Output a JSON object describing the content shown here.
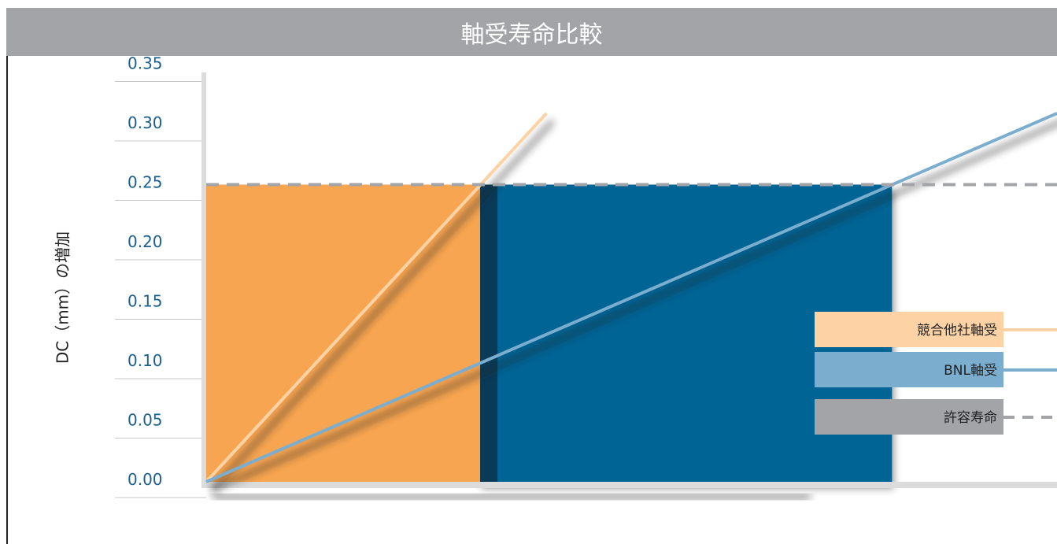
{
  "header": {
    "title": "軸受寿命比較"
  },
  "colors": {
    "competitor": "#f7a550",
    "competitor_line": "#fdd3a6",
    "bnl": "#006495",
    "bnl_line": "#7badcf",
    "allowable": "#a3a4a7",
    "tick_text": "#1b5f8d"
  },
  "chart_data": {
    "type": "line",
    "title": "軸受寿命比較",
    "ylabel": "DC（mm）の増加",
    "xlabel": "",
    "ylim": [
      0,
      0.35
    ],
    "y_ticks": [
      "0.35",
      "0.30",
      "0.25",
      "0.20",
      "0.15",
      "0.10",
      "0.05",
      "0.00"
    ],
    "x_axis_labeled": false,
    "x_max": 100,
    "threshold": 0.25,
    "series": [
      {
        "name": "競合他社軸受",
        "x": [
          0,
          40
        ],
        "y": [
          0,
          0.31
        ]
      },
      {
        "name": "BNL軸受",
        "x": [
          0,
          100
        ],
        "y": [
          0,
          0.31
        ]
      },
      {
        "name": "許容寿命",
        "x": [
          0,
          100
        ],
        "y": [
          0.25,
          0.25
        ],
        "style": "dashed"
      }
    ],
    "life_blocks": [
      {
        "series": "競合他社軸受",
        "x_end": 32.2,
        "height": 0.25
      },
      {
        "series": "BNL軸受",
        "x_end": 80.6,
        "height": 0.25
      }
    ],
    "legend": [
      "競合他社軸受",
      "BNL軸受",
      "許容寿命"
    ],
    "legend_position": "right",
    "grid": true
  }
}
